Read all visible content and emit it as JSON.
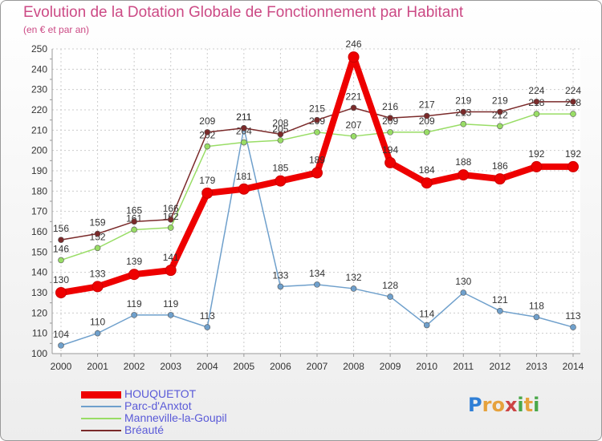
{
  "title": "Evolution de la Dotation Globale de Fonctionnement par Habitant",
  "subtitle": "(en € et par an)",
  "logo": {
    "letters": [
      "P",
      "r",
      "o",
      "x",
      "i",
      "t",
      "i"
    ],
    "colors": [
      "#2f7fd6",
      "#e6a23c",
      "#e6a23c",
      "#cc4444",
      "#4aa84a",
      "#e6a23c",
      "#4aa84a"
    ]
  },
  "chart_data": {
    "type": "line",
    "title": "Evolution de la Dotation Globale de Fonctionnement par Habitant",
    "subtitle": "(en € et par an)",
    "x": [
      "2000",
      "2001",
      "2002",
      "2003",
      "2004",
      "2005",
      "2006",
      "2007",
      "2008",
      "2009",
      "2010",
      "2011",
      "2012",
      "2013",
      "2014"
    ],
    "ylim": [
      100,
      250
    ],
    "yticks": [
      "100",
      "110",
      "120",
      "130",
      "140",
      "150",
      "160",
      "170",
      "180",
      "190",
      "200",
      "210",
      "220",
      "230",
      "240",
      "250"
    ],
    "grid": true,
    "legend": "bottom-left",
    "series": [
      {
        "name": "HOUQUETOT",
        "color": "#ee0000",
        "values": [
          130,
          133,
          139,
          141,
          179,
          181,
          185,
          189,
          246,
          194,
          184,
          188,
          186,
          192,
          192
        ],
        "labels": [
          "130",
          "133",
          "139",
          "141",
          "179",
          "181",
          "185",
          "189",
          "246",
          "194",
          "184",
          "188",
          "186",
          "192",
          "192"
        ]
      },
      {
        "name": "Parc-d'Anxtot",
        "color": "#6fa0cc",
        "values": [
          104,
          110,
          119,
          119,
          113,
          211,
          133,
          134,
          132,
          128,
          114,
          130,
          121,
          118,
          113
        ],
        "labels": [
          "104",
          "110",
          "119",
          "119",
          "113",
          "211",
          "133",
          "134",
          "132",
          "128",
          "114",
          "130",
          "121",
          "118",
          "113"
        ]
      },
      {
        "name": "Manneville-la-Goupil",
        "color": "#99dd66",
        "values": [
          146,
          152,
          161,
          162,
          202,
          204,
          205,
          209,
          207,
          209,
          209,
          213,
          212,
          218,
          218
        ],
        "labels": [
          "146",
          "152",
          "161",
          "162",
          "202",
          "204",
          "205",
          "209",
          "207",
          "209",
          "209",
          "213",
          "212",
          "218",
          "218"
        ]
      },
      {
        "name": "Bréauté",
        "color": "#7a2a2a",
        "values": [
          156,
          159,
          165,
          166,
          209,
          211,
          208,
          215,
          221,
          216,
          217,
          219,
          219,
          224,
          224
        ],
        "labels": [
          "156",
          "159",
          "165",
          "166",
          "209",
          "211",
          "208",
          "215",
          "221",
          "216",
          "217",
          "219",
          "219",
          "224",
          "224"
        ]
      }
    ]
  }
}
